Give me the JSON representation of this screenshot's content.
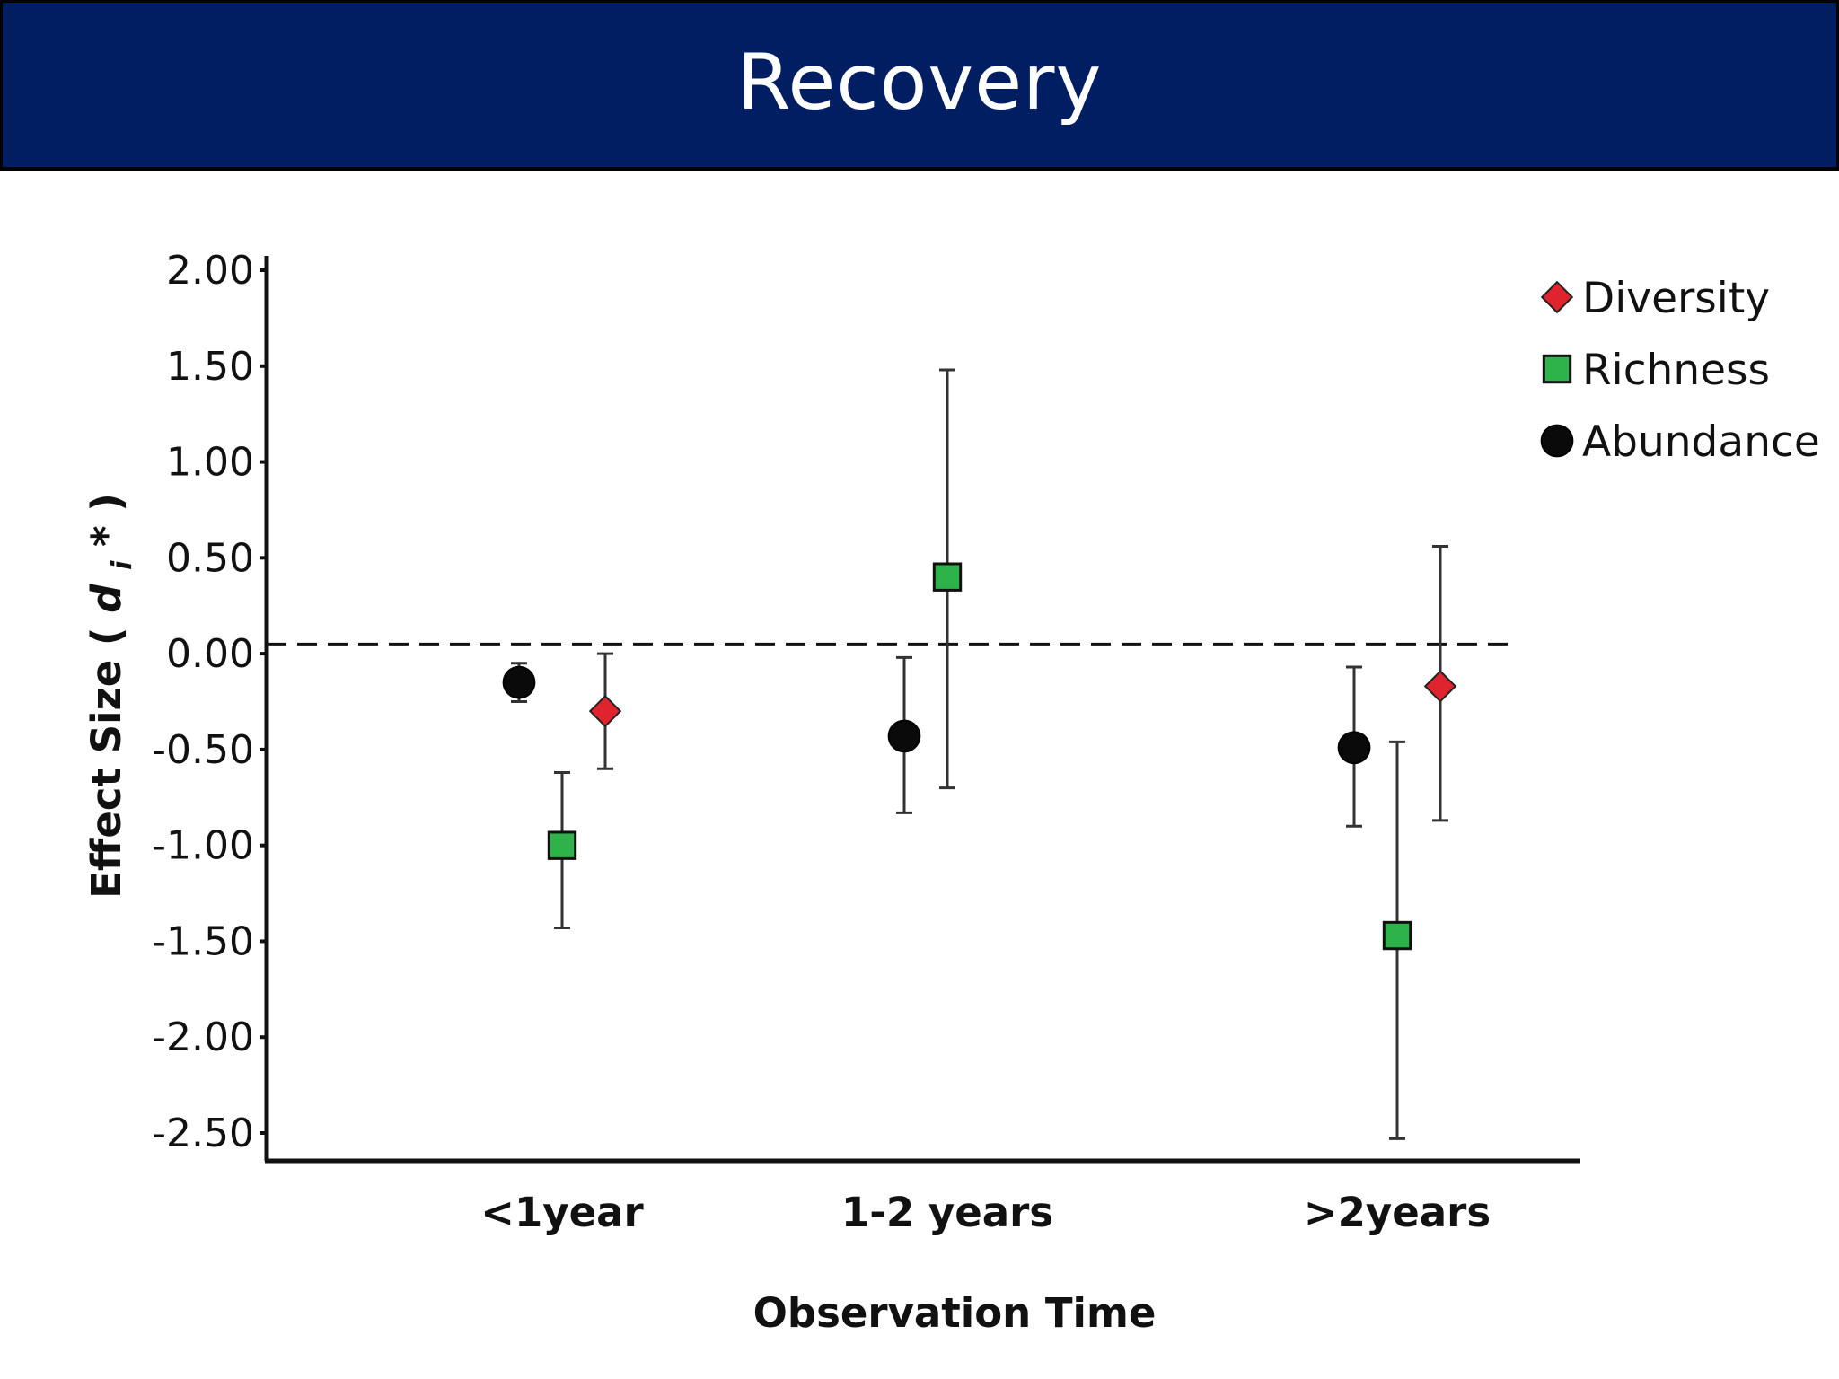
{
  "header": {
    "title": "Recovery"
  },
  "colors": {
    "banner": "#021e62",
    "diversity": "#e0242d",
    "richness": "#2db34a",
    "abundance": "#0a0a0a"
  },
  "chart_data": {
    "type": "scatter",
    "title": "",
    "xlabel": "Observation Time",
    "ylabel": "Effect Size",
    "ylabel_symbol": "d",
    "ylabel_subscript": "i",
    "ylabel_superscript": "*",
    "categories": [
      "<1year",
      "1-2 years",
      ">2years"
    ],
    "yticks": [
      "2.00",
      "1.50",
      "1.00",
      "0.50",
      "0.00",
      "-0.50",
      "-1.00",
      "-1.50",
      "-2.00",
      "-2.50"
    ],
    "ylim": [
      -2.65,
      2.05
    ],
    "reference_line": 0.05,
    "legend_position": "top-right",
    "series": [
      {
        "name": "Diversity",
        "marker": "diamond",
        "points": [
          {
            "category": "<1year",
            "value": -0.3,
            "lower": -0.6,
            "upper": 0.0
          },
          {
            "category": ">2years",
            "value": -0.17,
            "lower": -0.87,
            "upper": 0.56
          }
        ]
      },
      {
        "name": "Richness",
        "marker": "square",
        "points": [
          {
            "category": "<1year",
            "value": -1.0,
            "lower": -1.43,
            "upper": -0.62
          },
          {
            "category": "1-2 years",
            "value": 0.4,
            "lower": -0.7,
            "upper": 1.48
          },
          {
            "category": ">2years",
            "value": -1.47,
            "lower": -2.53,
            "upper": -0.46
          }
        ]
      },
      {
        "name": "Abundance",
        "marker": "circle",
        "points": [
          {
            "category": "<1year",
            "value": -0.15,
            "lower": -0.25,
            "upper": -0.05
          },
          {
            "category": "1-2 years",
            "value": -0.43,
            "lower": -0.83,
            "upper": -0.02
          },
          {
            "category": ">2years",
            "value": -0.49,
            "lower": -0.9,
            "upper": -0.07
          }
        ]
      }
    ]
  }
}
